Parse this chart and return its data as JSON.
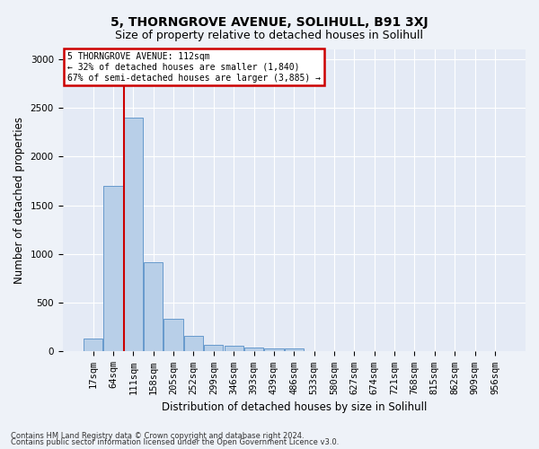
{
  "title": "5, THORNGROVE AVENUE, SOLIHULL, B91 3XJ",
  "subtitle": "Size of property relative to detached houses in Solihull",
  "xlabel": "Distribution of detached houses by size in Solihull",
  "ylabel": "Number of detached properties",
  "footer_line1": "Contains HM Land Registry data © Crown copyright and database right 2024.",
  "footer_line2": "Contains public sector information licensed under the Open Government Licence v3.0.",
  "bin_labels": [
    "17sqm",
    "64sqm",
    "111sqm",
    "158sqm",
    "205sqm",
    "252sqm",
    "299sqm",
    "346sqm",
    "393sqm",
    "439sqm",
    "486sqm",
    "533sqm",
    "580sqm",
    "627sqm",
    "674sqm",
    "721sqm",
    "768sqm",
    "815sqm",
    "862sqm",
    "909sqm",
    "956sqm"
  ],
  "bar_values": [
    130,
    1700,
    2400,
    920,
    340,
    160,
    70,
    55,
    40,
    30,
    30,
    0,
    0,
    0,
    0,
    0,
    0,
    0,
    0,
    0,
    0
  ],
  "bar_color": "#b8cfe8",
  "bar_edge_color": "#6699cc",
  "highlight_bin_index": 2,
  "highlight_color": "#cc0000",
  "annotation_text": "5 THORNGROVE AVENUE: 112sqm\n← 32% of detached houses are smaller (1,840)\n67% of semi-detached houses are larger (3,885) →",
  "annotation_box_color": "#cc0000",
  "ylim": [
    0,
    3100
  ],
  "yticks": [
    0,
    500,
    1000,
    1500,
    2000,
    2500,
    3000
  ],
  "bg_color": "#eef2f8",
  "plot_bg_color": "#e4eaf5",
  "title_fontsize": 10,
  "subtitle_fontsize": 9,
  "tick_fontsize": 7.5
}
